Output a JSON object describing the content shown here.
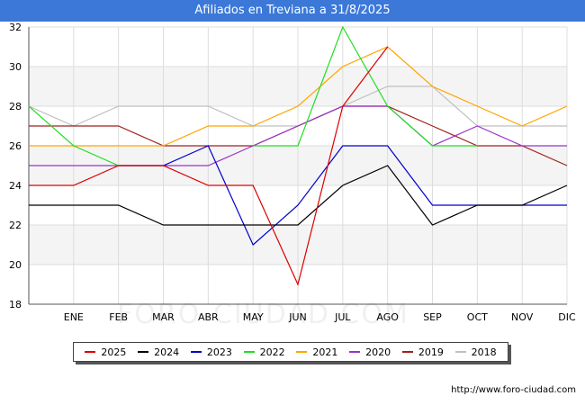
{
  "header": {
    "title": "Afiliados en Treviana a 31/8/2025"
  },
  "watermark": "FORO-CIUDAD.COM",
  "source": "http://www.foro-ciudad.com",
  "chart_data": {
    "type": "line",
    "title": "Afiliados en Treviana a 31/8/2025",
    "x": [
      "",
      "ENE",
      "FEB",
      "MAR",
      "ABR",
      "MAY",
      "JUN",
      "JUL",
      "AGO",
      "SEP",
      "OCT",
      "NOV",
      "DIC"
    ],
    "ylim": [
      18,
      32
    ],
    "yticks": [
      18,
      20,
      22,
      24,
      26,
      28,
      30,
      32
    ],
    "grid": true,
    "legend_position": "bottom",
    "series": [
      {
        "name": "2018",
        "color": "#c0c0c0",
        "values": [
          28,
          27,
          28,
          28,
          28,
          27,
          27,
          28,
          29,
          29,
          27,
          27,
          27
        ]
      },
      {
        "name": "2019",
        "color": "#a02020",
        "values": [
          27,
          27,
          27,
          26,
          26,
          26,
          27,
          28,
          28,
          27,
          26,
          26,
          25
        ]
      },
      {
        "name": "2020",
        "color": "#9933cc",
        "values": [
          25,
          25,
          25,
          25,
          25,
          26,
          27,
          28,
          28,
          26,
          27,
          26,
          26
        ]
      },
      {
        "name": "2021",
        "color": "#ffa500",
        "values": [
          26,
          26,
          26,
          26,
          27,
          27,
          28,
          30,
          31,
          29,
          28,
          27,
          28
        ]
      },
      {
        "name": "2022",
        "color": "#22dd22",
        "values": [
          28,
          26,
          25,
          null,
          null,
          26,
          26,
          32,
          28,
          26,
          26,
          null,
          null
        ]
      },
      {
        "name": "2023",
        "color": "#0000cc",
        "values": [
          null,
          null,
          25,
          25,
          26,
          21,
          23,
          26,
          26,
          23,
          23,
          23,
          23
        ]
      },
      {
        "name": "2024",
        "color": "#000000",
        "values": [
          23,
          23,
          23,
          22,
          22,
          22,
          22,
          24,
          25,
          22,
          23,
          23,
          24
        ]
      },
      {
        "name": "2025",
        "color": "#dd0000",
        "values": [
          24,
          24,
          25,
          25,
          24,
          24,
          19,
          28,
          31,
          null,
          null,
          null,
          null
        ]
      }
    ],
    "legend_order": [
      "2025",
      "2024",
      "2023",
      "2022",
      "2021",
      "2020",
      "2019",
      "2018"
    ]
  }
}
